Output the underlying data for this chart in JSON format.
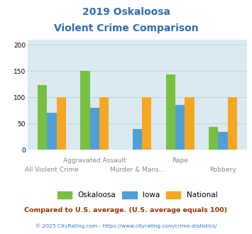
{
  "title_line1": "2019 Oskaloosa",
  "title_line2": "Violent Crime Comparison",
  "categories": [
    "All Violent Crime",
    "Aggravated Assault",
    "Murder & Mans...",
    "Rape",
    "Robbery"
  ],
  "oskaloosa": [
    124,
    151,
    0,
    144,
    44
  ],
  "iowa": [
    71,
    80,
    40,
    86,
    34
  ],
  "national": [
    100,
    100,
    100,
    100,
    100
  ],
  "colors": {
    "oskaloosa": "#77c041",
    "iowa": "#4f9fd4",
    "national": "#f5a623"
  },
  "ylim": [
    0,
    210
  ],
  "yticks": [
    0,
    50,
    100,
    150,
    200
  ],
  "footnote": "Compared to U.S. average. (U.S. average equals 100)",
  "copyright": "© 2025 CityRating.com - https://www.cityrating.com/crime-statistics/",
  "title_color": "#2e6db4",
  "footnote_color": "#993300",
  "copyright_color": "#3377cc",
  "bg_color": "#daeaf0",
  "bar_width": 0.22,
  "grid_color": "#c0d8e0"
}
